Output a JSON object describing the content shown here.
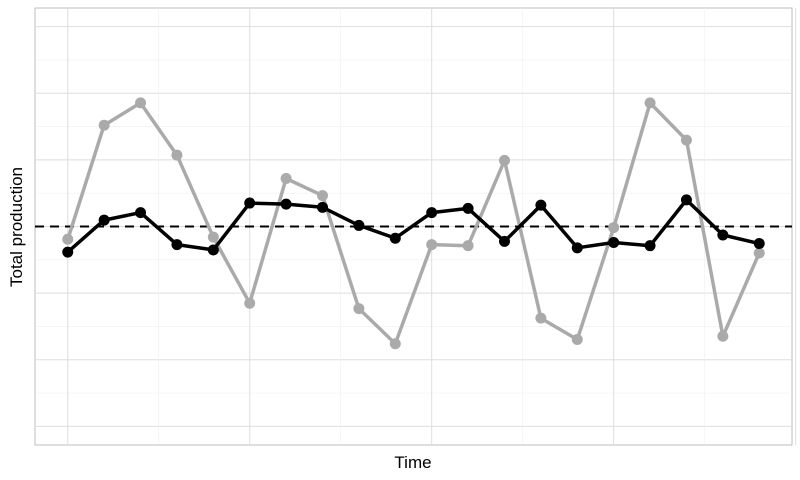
{
  "chart_data": {
    "type": "line",
    "title": "",
    "xlabel": "Time",
    "ylabel": "Total production",
    "x": [
      1,
      2,
      3,
      4,
      5,
      6,
      7,
      8,
      9,
      10,
      11,
      12,
      13,
      14,
      15,
      16,
      17,
      18,
      19,
      20
    ],
    "xlim": [
      0.1,
      20.9
    ],
    "ylim": [
      -2.05,
      2.05
    ],
    "grid": true,
    "legend": "none",
    "reference_line": {
      "y": 0,
      "style": "dashed",
      "color": "#000000"
    },
    "series": [
      {
        "color": "#aaaaaa",
        "values": [
          -0.12,
          0.95,
          1.16,
          0.67,
          -0.1,
          -0.72,
          0.45,
          0.29,
          -0.77,
          -1.1,
          -0.17,
          -0.18,
          0.62,
          -0.86,
          -1.06,
          -0.01,
          1.16,
          0.81,
          -1.03,
          -0.25
        ]
      },
      {
        "color": "#000000",
        "values": [
          -0.24,
          0.06,
          0.13,
          -0.17,
          -0.22,
          0.22,
          0.21,
          0.18,
          0.01,
          -0.11,
          0.13,
          0.17,
          -0.14,
          0.2,
          -0.2,
          -0.15,
          -0.18,
          0.25,
          -0.08,
          -0.16
        ]
      }
    ]
  }
}
